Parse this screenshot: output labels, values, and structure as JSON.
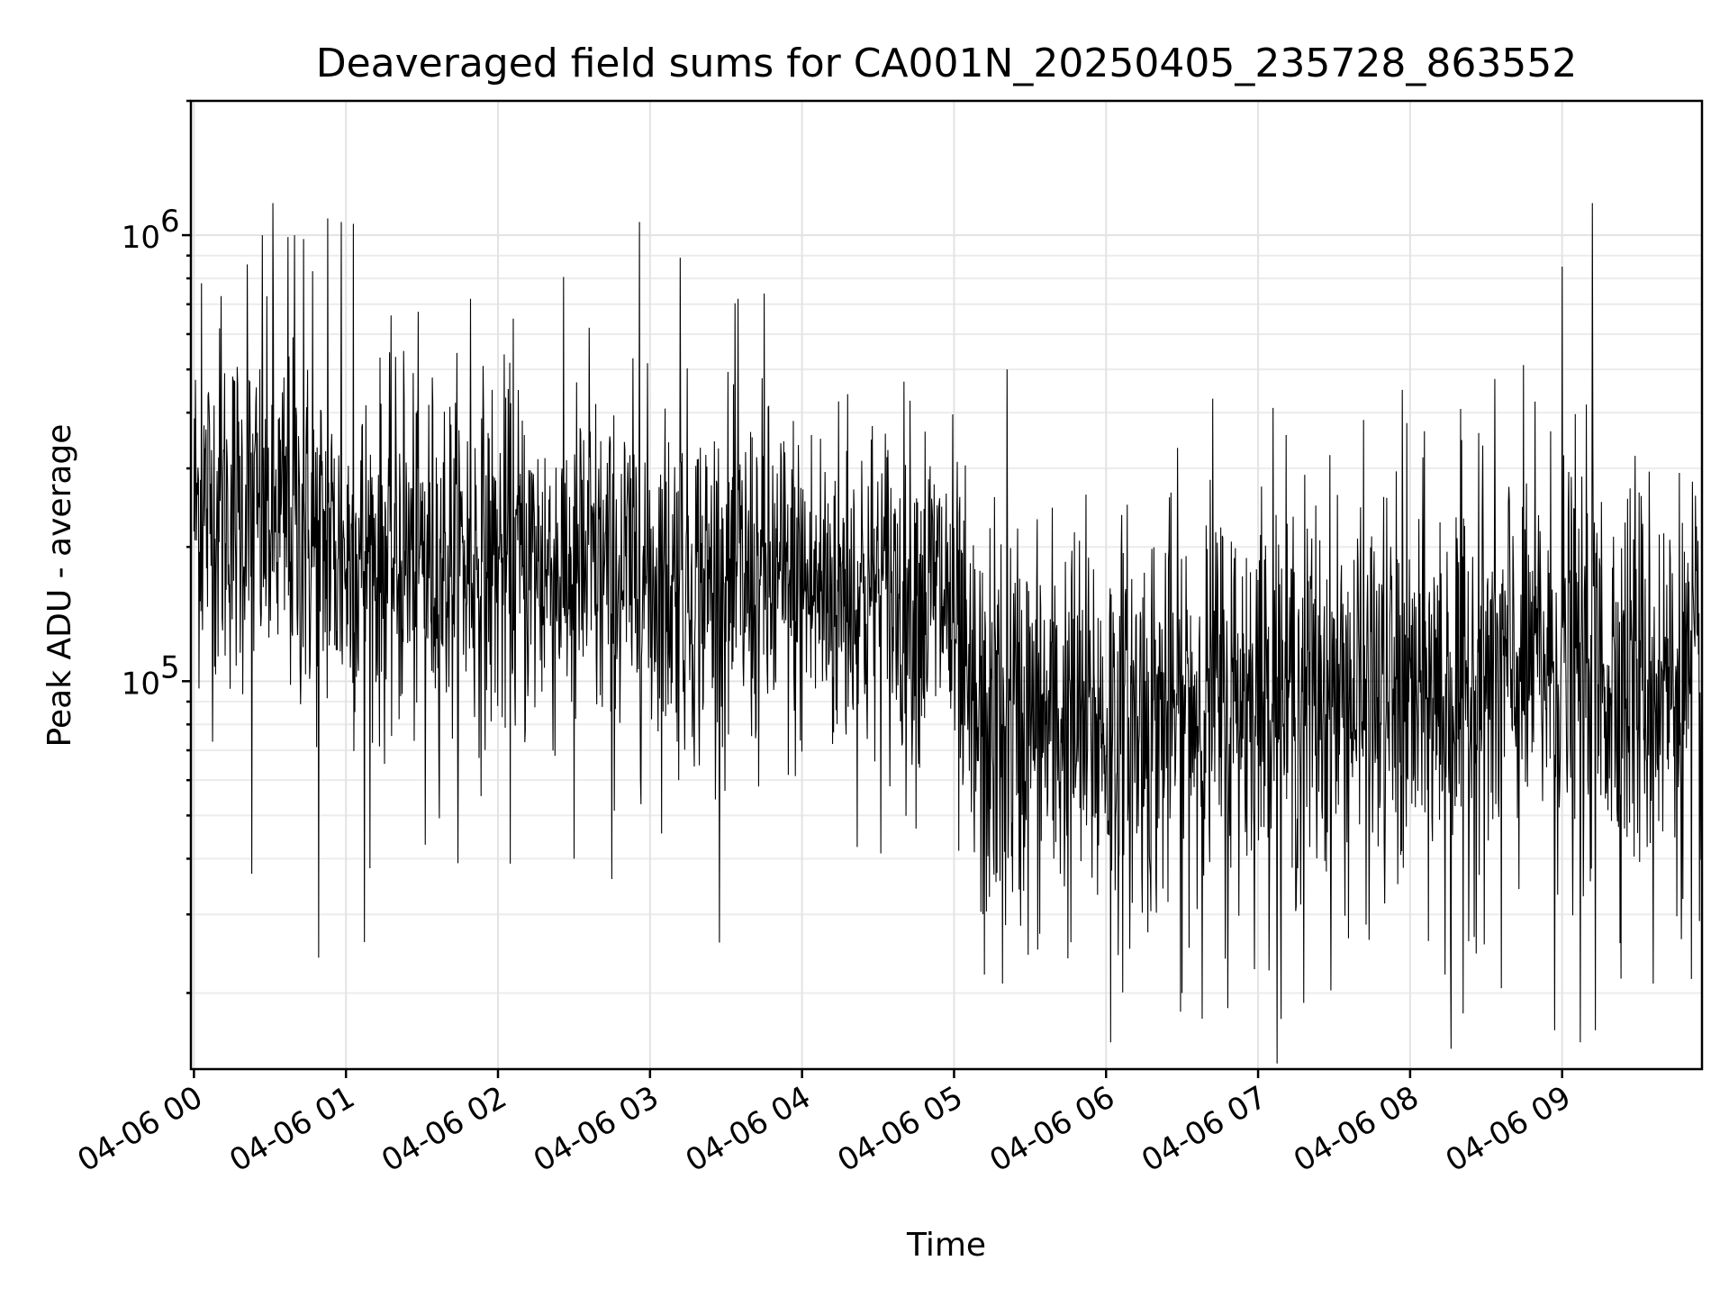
{
  "chart_data": {
    "type": "line",
    "title": "Deaveraged field sums for CA001N_20250405_235728_863552",
    "xlabel": "Time",
    "ylabel": "Peak ADU - average",
    "x_ticks": [
      "04-06 00",
      "04-06 01",
      "04-06 02",
      "04-06 03",
      "04-06 04",
      "04-06 05",
      "04-06 06",
      "04-06 07",
      "04-06 08",
      "04-06 09"
    ],
    "x_tick_hours": [
      0,
      1,
      2,
      3,
      4,
      5,
      6,
      7,
      8,
      9
    ],
    "xlim_hours": [
      -0.02,
      9.92
    ],
    "yscale": "log",
    "ylim": [
      13500,
      2000000
    ],
    "y_ticks": [
      {
        "base": "10",
        "exp": "5",
        "value": 100000
      },
      {
        "base": "10",
        "exp": "6",
        "value": 1000000
      }
    ],
    "grid": true,
    "series": [
      {
        "color": "#000000",
        "n_points": 3000,
        "trend": [
          {
            "hour": 0.0,
            "median": 250000,
            "spread": 0.2
          },
          {
            "hour": 0.5,
            "median": 230000,
            "spread": 0.2
          },
          {
            "hour": 1.0,
            "median": 190000,
            "spread": 0.2
          },
          {
            "hour": 2.0,
            "median": 185000,
            "spread": 0.2
          },
          {
            "hour": 3.0,
            "median": 170000,
            "spread": 0.2
          },
          {
            "hour": 4.0,
            "median": 160000,
            "spread": 0.2
          },
          {
            "hour": 4.95,
            "median": 155000,
            "spread": 0.2
          },
          {
            "hour": 5.1,
            "median": 80000,
            "spread": 0.23
          },
          {
            "hour": 6.0,
            "median": 78000,
            "spread": 0.23
          },
          {
            "hour": 7.0,
            "median": 95000,
            "spread": 0.22
          },
          {
            "hour": 8.0,
            "median": 90000,
            "spread": 0.23
          },
          {
            "hour": 8.9,
            "median": 110000,
            "spread": 0.23
          },
          {
            "hour": 9.92,
            "median": 95000,
            "spread": 0.22
          }
        ],
        "peaks": [
          [
            0.05,
            780000
          ],
          [
            0.18,
            730000
          ],
          [
            0.35,
            860000
          ],
          [
            0.45,
            1000000
          ],
          [
            0.52,
            1180000
          ],
          [
            0.62,
            990000
          ],
          [
            0.66,
            1000000
          ],
          [
            0.72,
            980000
          ],
          [
            0.78,
            830000
          ],
          [
            0.88,
            1090000
          ],
          [
            0.97,
            1070000
          ],
          [
            1.05,
            1060000
          ],
          [
            1.38,
            550000
          ],
          [
            1.82,
            720000
          ],
          [
            2.1,
            650000
          ],
          [
            2.6,
            620000
          ],
          [
            2.93,
            1070000
          ],
          [
            3.2,
            890000
          ],
          [
            3.58,
            720000
          ],
          [
            3.75,
            740000
          ],
          [
            4.3,
            440000
          ],
          [
            5.35,
            500000
          ],
          [
            6.7,
            430000
          ],
          [
            7.1,
            410000
          ],
          [
            7.95,
            450000
          ],
          [
            8.45,
            360000
          ],
          [
            9.0,
            850000
          ],
          [
            9.2,
            1180000
          ],
          [
            9.48,
            320000
          ]
        ],
        "dips": [
          [
            0.38,
            37000
          ],
          [
            0.82,
            24000
          ],
          [
            1.12,
            26000
          ],
          [
            1.52,
            43000
          ],
          [
            2.08,
            39000
          ],
          [
            2.5,
            40000
          ],
          [
            2.75,
            36000
          ],
          [
            5.2,
            22000
          ],
          [
            5.32,
            21000
          ],
          [
            6.03,
            15500
          ],
          [
            6.5,
            20000
          ],
          [
            6.8,
            18500
          ],
          [
            7.15,
            17500
          ],
          [
            7.3,
            19000
          ],
          [
            8.23,
            22000
          ],
          [
            8.27,
            15000
          ],
          [
            8.35,
            18000
          ],
          [
            8.6,
            20500
          ],
          [
            8.95,
            16500
          ],
          [
            9.12,
            15500
          ],
          [
            9.22,
            16500
          ],
          [
            9.6,
            21000
          ],
          [
            9.85,
            21500
          ]
        ]
      }
    ]
  }
}
